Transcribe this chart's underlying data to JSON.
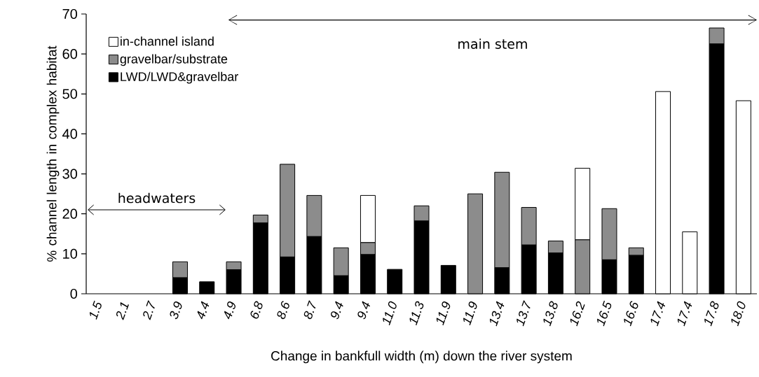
{
  "chart_data": {
    "type": "bar",
    "stacked": true,
    "xlabel": "Change in bankfull width (m) down the river system",
    "ylabel": "% channel length in complex habitat",
    "categories": [
      "1.5",
      "2.1",
      "2.7",
      "3.9",
      "4.4",
      "4.9",
      "6.8",
      "8.6",
      "8.7",
      "9.4",
      "9.4",
      "11.0",
      "11.3",
      "11.9",
      "11.9",
      "13.4",
      "13.7",
      "13.8",
      "16.2",
      "16.5",
      "16.6",
      "17.4",
      "17.4",
      "17.8",
      "18.0"
    ],
    "series": [
      {
        "name": "LWD/LWD&gravelbar",
        "color": "#000000",
        "values": [
          0,
          0,
          0,
          4,
          3,
          6,
          17.7,
          9.2,
          14.3,
          4.5,
          9.8,
          6.1,
          18.2,
          7.1,
          0,
          6.5,
          12.2,
          10.2,
          0,
          8.5,
          9.6,
          0,
          0,
          62.5,
          0
        ]
      },
      {
        "name": "gravelbar/substrate",
        "color": "#8c8c8c",
        "values": [
          0,
          0,
          0,
          4,
          0,
          2,
          2,
          23.2,
          10.3,
          7,
          3,
          0,
          3.8,
          0,
          25,
          23.9,
          9.4,
          3,
          13.5,
          12.8,
          1.9,
          0,
          0,
          4,
          0
        ]
      },
      {
        "name": "in-channel island",
        "color": "#ffffff",
        "values": [
          0,
          0,
          0,
          0,
          0,
          0,
          0,
          0,
          0,
          0,
          11.8,
          0,
          0,
          0,
          0,
          0,
          0,
          0,
          17.9,
          0,
          0,
          50.6,
          15.5,
          0,
          48.3
        ]
      }
    ],
    "ylim": [
      0,
      70
    ],
    "yticks": [
      0,
      10,
      20,
      30,
      40,
      50,
      60,
      70
    ],
    "legend": "top left",
    "annotations": [
      "headwaters",
      "main stem"
    ]
  }
}
